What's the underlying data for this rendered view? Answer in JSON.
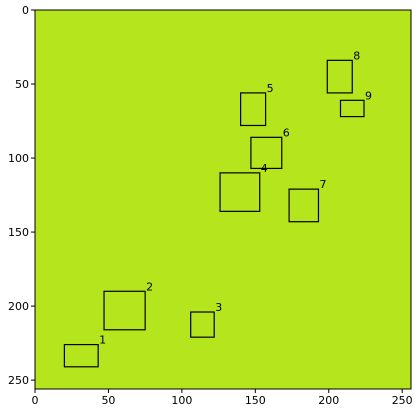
{
  "chart_data": {
    "type": "image_annotation",
    "title": "",
    "xlabel": "",
    "ylabel": "",
    "xlim": [
      0,
      256
    ],
    "ylim": [
      256,
      0
    ],
    "x_ticks": [
      0,
      50,
      100,
      150,
      200,
      250
    ],
    "y_ticks": [
      0,
      50,
      100,
      150,
      200,
      250
    ],
    "background_color": "#b5e61d",
    "box_color": "#000000",
    "boxes": [
      {
        "label": "1",
        "x0": 20,
        "y0": 226,
        "x1": 43,
        "y1": 241
      },
      {
        "label": "2",
        "x0": 47,
        "y0": 190,
        "x1": 75,
        "y1": 216
      },
      {
        "label": "3",
        "x0": 106,
        "y0": 204,
        "x1": 122,
        "y1": 221
      },
      {
        "label": "4",
        "x0": 126,
        "y0": 110,
        "x1": 153,
        "y1": 136
      },
      {
        "label": "5",
        "x0": 140,
        "y0": 56,
        "x1": 157,
        "y1": 78
      },
      {
        "label": "6",
        "x0": 147,
        "y0": 86,
        "x1": 168,
        "y1": 107
      },
      {
        "label": "7",
        "x0": 173,
        "y0": 121,
        "x1": 193,
        "y1": 143
      },
      {
        "label": "8",
        "x0": 199,
        "y0": 34,
        "x1": 216,
        "y1": 56
      },
      {
        "label": "9",
        "x0": 208,
        "y0": 61,
        "x1": 224,
        "y1": 72
      }
    ]
  }
}
